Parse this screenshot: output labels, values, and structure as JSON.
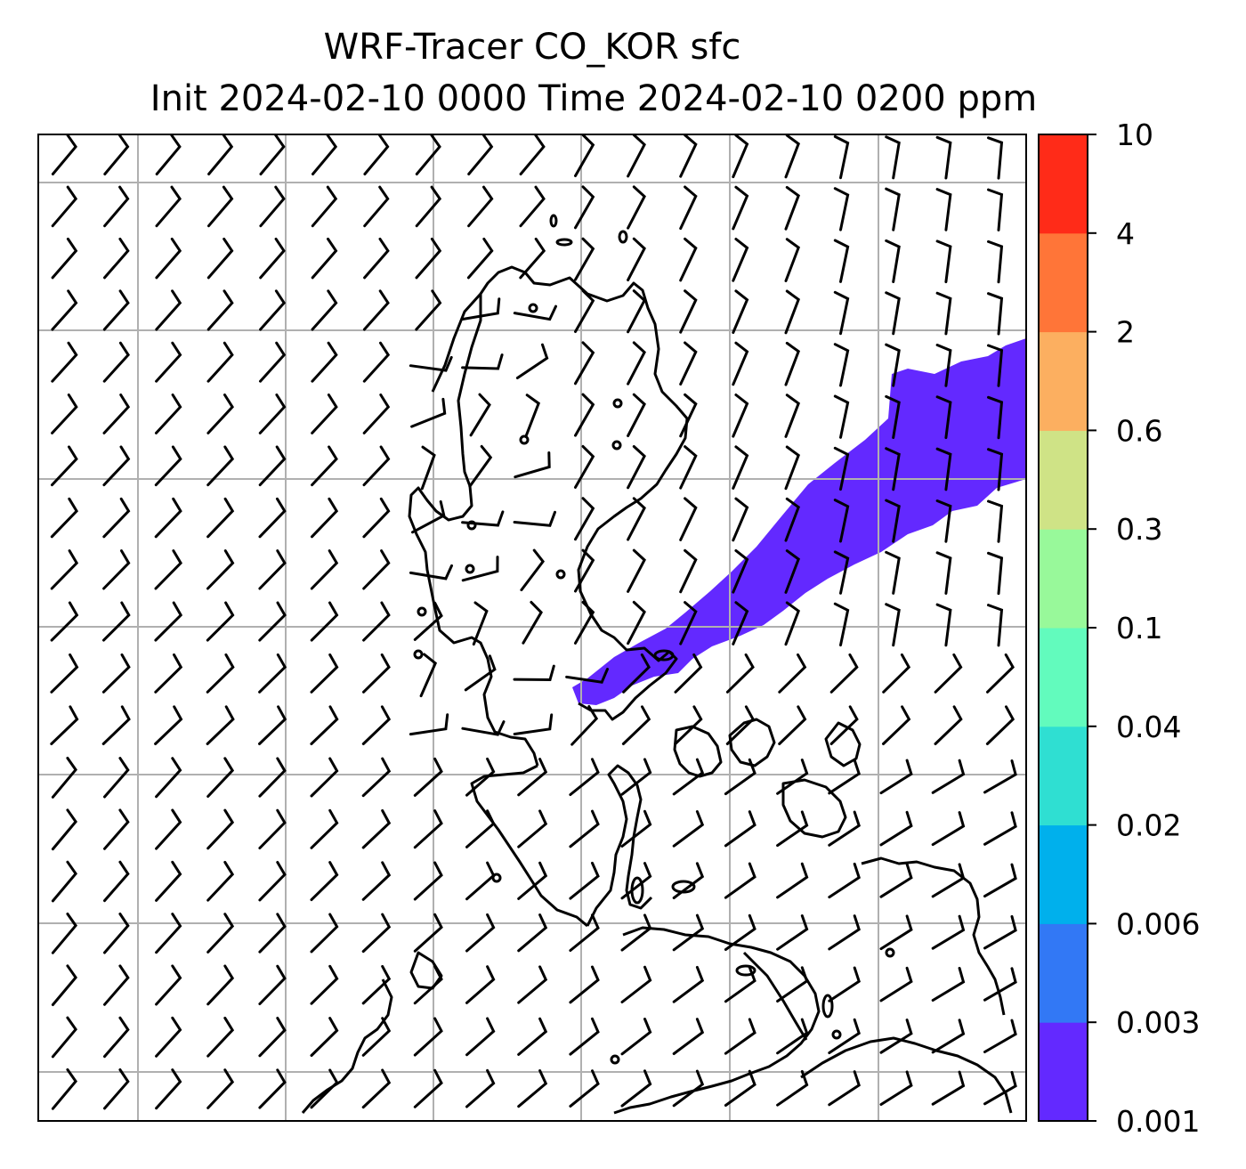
{
  "title": {
    "line1": "WRF-Tracer CO_KOR sfc",
    "line2": "Init 2024-02-10 0000 Time 2024-02-10 0200 ppm"
  },
  "colorbar": {
    "levels": [
      "0.001",
      "0.003",
      "0.006",
      "0.02",
      "0.04",
      "0.1",
      "0.3",
      "0.6",
      "2",
      "4",
      "10"
    ],
    "colors": [
      "#6329ff",
      "#3278f5",
      "#00b0ec",
      "#2fdfd2",
      "#62fbbd",
      "#98f99a",
      "#cfe386",
      "#fcaf60",
      "#ff7538",
      "#ff2b18"
    ]
  },
  "map": {
    "plume_color": "#6329ff",
    "grid_color": "#b0b0b0",
    "coastline_color": "#000000",
    "barb_color": "#000000"
  },
  "chart_data": {
    "type": "heatmap",
    "title": "WRF-Tracer CO_KOR sfc\nInit 2024-02-10 0000 Time 2024-02-10 0200 ppm",
    "colorbar_levels": [
      0.001,
      0.003,
      0.006,
      0.02,
      0.04,
      0.1,
      0.3,
      0.6,
      2,
      4,
      10
    ],
    "plume_band": "0.001-0.003",
    "grid": true
  }
}
